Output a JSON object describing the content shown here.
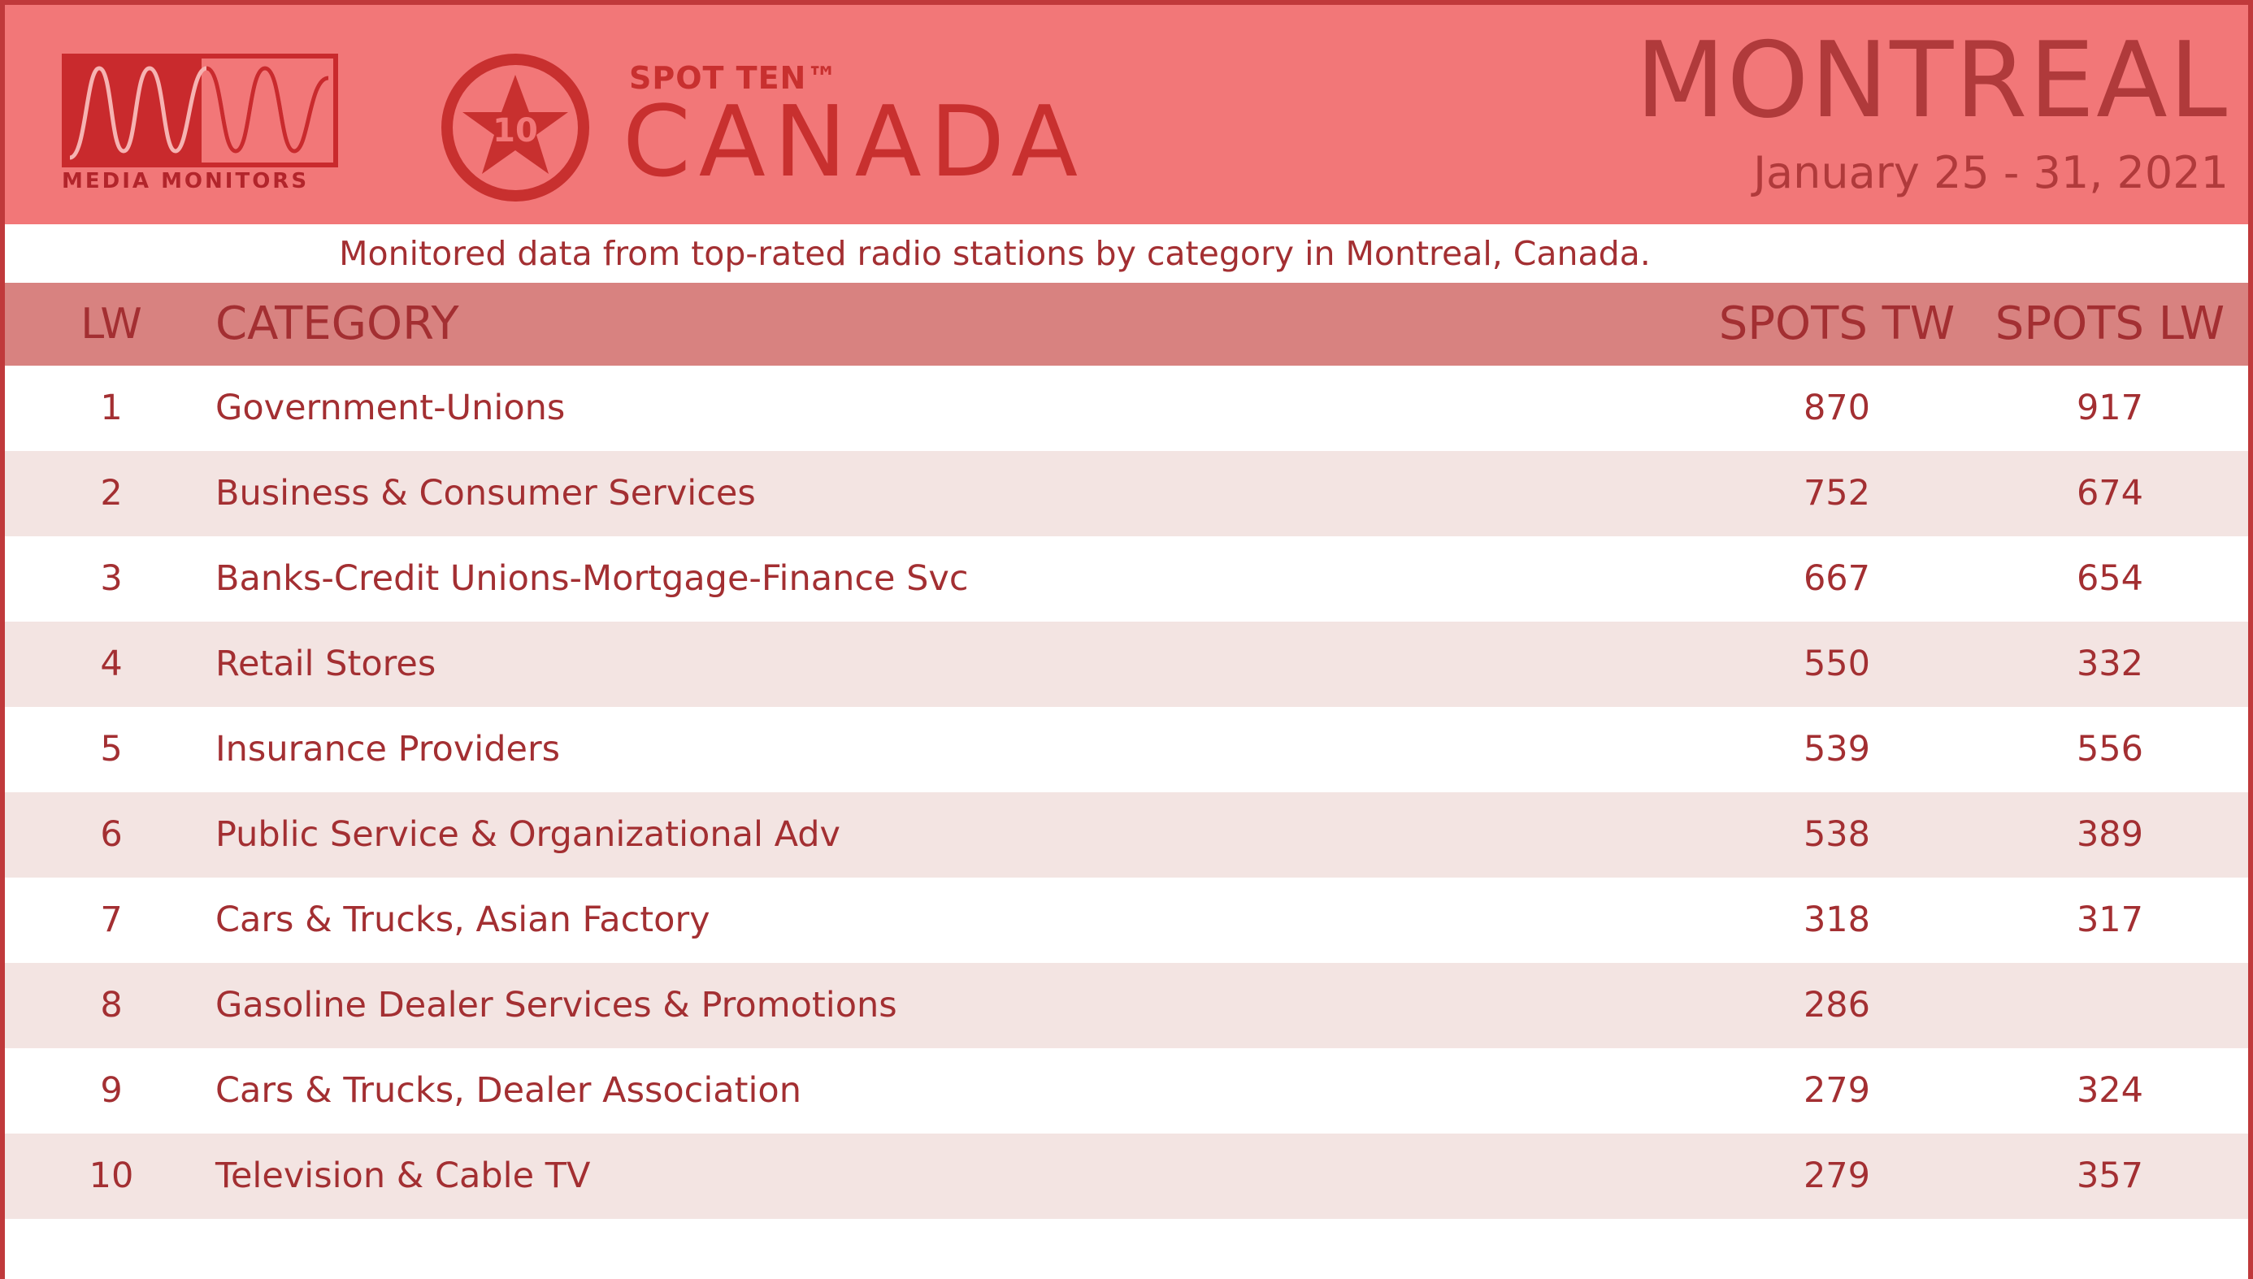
{
  "header": {
    "logo_text": "MEDIA MONITORS",
    "spot_label": "SPOT TEN™",
    "spot_badge_number": "10",
    "country": "CANADA",
    "city": "MONTREAL",
    "date_range": "January 25 - 31, 2021"
  },
  "subtitle": "Monitored data from top-rated radio stations by category in Montreal, Canada.",
  "table": {
    "headers": {
      "lw": "LW",
      "category": "CATEGORY",
      "spots_tw": "SPOTS TW",
      "spots_lw": "SPOTS LW"
    },
    "rows": [
      {
        "lw": "1",
        "category": "Government-Unions",
        "spots_tw": "870",
        "spots_lw": "917"
      },
      {
        "lw": "2",
        "category": "Business & Consumer Services",
        "spots_tw": "752",
        "spots_lw": "674"
      },
      {
        "lw": "3",
        "category": "Banks-Credit Unions-Mortgage-Finance Svc",
        "spots_tw": "667",
        "spots_lw": "654"
      },
      {
        "lw": "4",
        "category": "Retail Stores",
        "spots_tw": "550",
        "spots_lw": "332"
      },
      {
        "lw": "5",
        "category": "Insurance Providers",
        "spots_tw": "539",
        "spots_lw": "556"
      },
      {
        "lw": "6",
        "category": "Public Service & Organizational Adv",
        "spots_tw": "538",
        "spots_lw": "389"
      },
      {
        "lw": "7",
        "category": "Cars & Trucks, Asian Factory",
        "spots_tw": "318",
        "spots_lw": "317"
      },
      {
        "lw": "8",
        "category": "Gasoline Dealer Services & Promotions",
        "spots_tw": "286",
        "spots_lw": ""
      },
      {
        "lw": "9",
        "category": "Cars & Trucks, Dealer Association",
        "spots_tw": "279",
        "spots_lw": "324"
      },
      {
        "lw": "10",
        "category": "Television & Cable TV",
        "spots_tw": "279",
        "spots_lw": "357"
      }
    ]
  },
  "colors": {
    "header_bg": "#f27778",
    "table_header_bg": "#d88280",
    "stripe_bg": "#f3e4e2",
    "text": "#a32f32",
    "logo_red": "#c8302f",
    "border": "#c0393b"
  }
}
